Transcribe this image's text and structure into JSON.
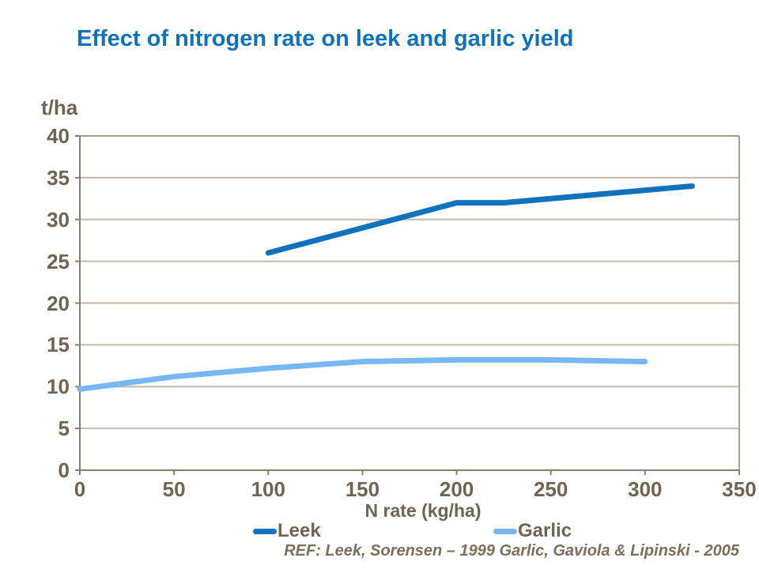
{
  "title": {
    "text": "Effect of nitrogen rate on leek and garlic yield",
    "color": "#0E72BD"
  },
  "colors": {
    "axis_text": "#6F6450",
    "grid_line": "#C1B8A9",
    "axis_line": "#8A7D6C",
    "plot_border": "#A89D8E",
    "footnote": "#7D7059"
  },
  "chart_data": {
    "type": "line",
    "title": "Effect of nitrogen rate on leek and garlic yield",
    "y_unit_label": "t/ha",
    "xlabel": "N rate (kg/ha)",
    "ylabel": "t/ha",
    "xlim": [
      0,
      350
    ],
    "ylim": [
      0,
      40
    ],
    "x_ticks": [
      0,
      50,
      100,
      150,
      200,
      250,
      300,
      350
    ],
    "y_ticks": [
      0,
      5,
      10,
      15,
      20,
      25,
      30,
      35,
      40
    ],
    "grid": "horizontal gridlines every 5 t/ha, plot area outlined",
    "legend_position": "bottom",
    "series": [
      {
        "name": "Leek",
        "color": "#1072BC",
        "points": [
          [
            100,
            26
          ],
          [
            200,
            32
          ],
          [
            225,
            32
          ],
          [
            325,
            34
          ]
        ]
      },
      {
        "name": "Garlic",
        "color": "#77B8F4",
        "points": [
          [
            0,
            9.7
          ],
          [
            50,
            11.2
          ],
          [
            100,
            12.2
          ],
          [
            150,
            13
          ],
          [
            200,
            13.2
          ],
          [
            250,
            13.2
          ],
          [
            300,
            13
          ]
        ]
      }
    ],
    "footnote": "REF: Leek, Sorensen – 1999 Garlic, Gaviola & Lipinski - 2005"
  }
}
